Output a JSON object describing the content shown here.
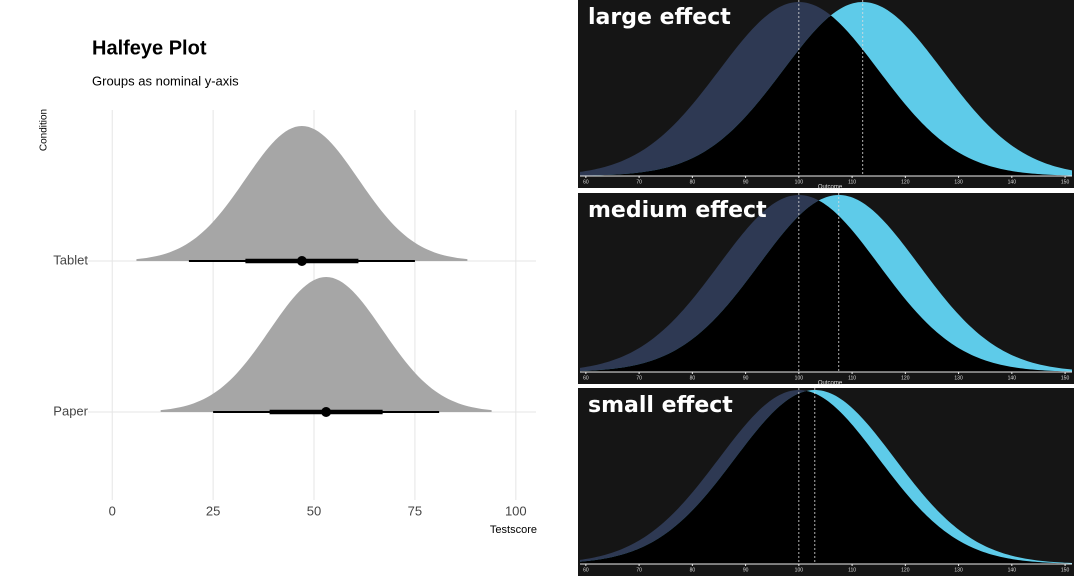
{
  "chart_data": [
    {
      "type": "halfeye",
      "title": "Halfeye Plot",
      "subtitle": "Groups as nominal y-axis",
      "y_label": "Condition",
      "x_label": "Testscore",
      "categories": [
        "Tablet",
        "Paper"
      ],
      "means": [
        47,
        53
      ],
      "sds": [
        14,
        14
      ],
      "density_range": [
        [
          6,
          88
        ],
        [
          12,
          94
        ]
      ],
      "interval_66": [
        [
          33,
          61
        ],
        [
          39,
          67
        ]
      ],
      "interval_95": [
        [
          19,
          75
        ],
        [
          25,
          81
        ]
      ],
      "color": "#a6a6a6",
      "interval_color": "#000000",
      "xlim": [
        -6,
        105
      ],
      "xticks": [
        0,
        25,
        50,
        75,
        100
      ],
      "grid": true
    },
    {
      "type": "effect",
      "title": "large effect",
      "x_label": "Outcome",
      "means": [
        100,
        112
      ],
      "sd": 15,
      "colors": [
        "#2e3953",
        "#5ecbe9"
      ],
      "overlap_color": "#000000",
      "xlim": [
        58.9,
        151.3
      ],
      "xticks": [
        60,
        70,
        80,
        90,
        100,
        110,
        120,
        130,
        140,
        150
      ]
    },
    {
      "type": "effect",
      "title": "medium effect",
      "x_label": "Outcome",
      "means": [
        100,
        107.5
      ],
      "sd": 15,
      "colors": [
        "#2e3953",
        "#5ecbe9"
      ],
      "overlap_color": "#000000",
      "xlim": [
        58.9,
        151.3
      ],
      "xticks": [
        60,
        70,
        80,
        90,
        100,
        110,
        120,
        130,
        140,
        150
      ]
    },
    {
      "type": "effect",
      "title": "small effect",
      "means": [
        100,
        103
      ],
      "sd": 15,
      "colors": [
        "#2e3953",
        "#5ecbe9"
      ],
      "overlap_color": "#000000",
      "xlim": [
        58.9,
        151.3
      ],
      "xticks": [
        60,
        70,
        80,
        90,
        100,
        110,
        120,
        130,
        140,
        150
      ]
    }
  ]
}
